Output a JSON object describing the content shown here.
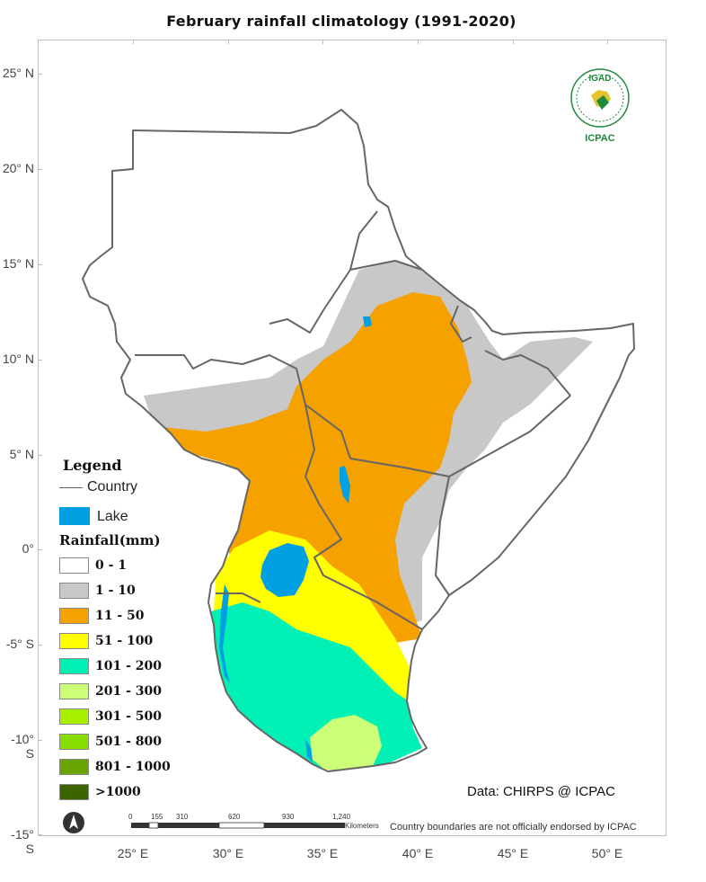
{
  "title": "February  rainfall climatology (1991-2020)",
  "lat_labels": [
    "25° N",
    "20° N",
    "15° N",
    "10° N",
    "5° N",
    "0°",
    "-5° S",
    "-10° S",
    "-15° S"
  ],
  "lon_labels": [
    "25° E",
    "30° E",
    "35° E",
    "40° E",
    "45° E",
    "50° E"
  ],
  "legend": {
    "title": "Legend",
    "country_label": "Country",
    "lake_label": "Lake",
    "rainfall_title": "Rainfall(mm)",
    "classes": [
      {
        "label": "0 - 1",
        "color": "#ffffff"
      },
      {
        "label": "1 - 10",
        "color": "#c8c8c8"
      },
      {
        "label": "11 - 50",
        "color": "#f5a100"
      },
      {
        "label": "51 - 100",
        "color": "#ffff00"
      },
      {
        "label": "101 - 200",
        "color": "#00f0b5"
      },
      {
        "label": "201 - 300",
        "color": "#ccff77"
      },
      {
        "label": "301 - 500",
        "color": "#a6f000"
      },
      {
        "label": "501 - 800",
        "color": "#88dd00"
      },
      {
        "label": "801 - 1000",
        "color": "#6aa400"
      },
      {
        "label": ">1000",
        "color": "#3c6400"
      }
    ]
  },
  "colors": {
    "lake": "#00a0e3",
    "border": "#666666"
  },
  "logo": {
    "top_text": "IGAD",
    "bottom_text": "ICPAC",
    "color": "#1e8a3c"
  },
  "credit": "Data: CHIRPS @ ICPAC",
  "disclaimer": "Country boundaries are not officially endorsed by ICPAC",
  "scalebar": {
    "ticks": [
      "0",
      "155",
      "310",
      "620",
      "930",
      "1,240"
    ],
    "unit": "Kilometers"
  },
  "north_arrow": "north-arrow-icon"
}
